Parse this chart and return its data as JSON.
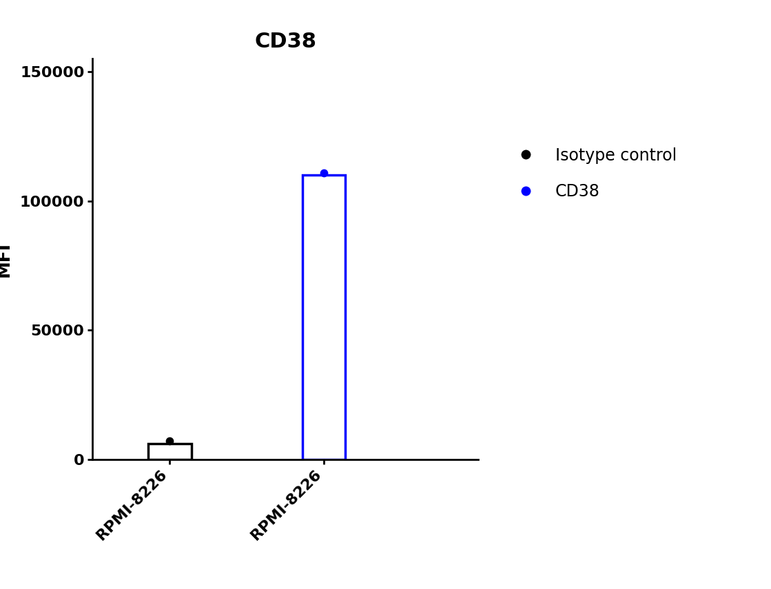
{
  "title": "CD38",
  "ylabel": "MFI",
  "categories": [
    "RPMI-8226",
    "RPMI-8226"
  ],
  "bar_values": [
    6000,
    110000
  ],
  "dot_values": [
    7200,
    111000
  ],
  "bar_colors": [
    "black",
    "blue"
  ],
  "dot_colors": [
    "black",
    "blue"
  ],
  "ylim": [
    0,
    155000
  ],
  "yticks": [
    0,
    50000,
    100000,
    150000
  ],
  "ytick_labels": [
    "0",
    "50000",
    "100000",
    "150000"
  ],
  "legend_labels": [
    "Isotype control",
    "CD38"
  ],
  "legend_colors": [
    "black",
    "blue"
  ],
  "title_fontsize": 22,
  "axis_label_fontsize": 18,
  "tick_fontsize": 16,
  "legend_fontsize": 17,
  "bar_width": 0.28,
  "bar_positions": [
    1,
    2
  ],
  "xlim": [
    0.5,
    3.0
  ],
  "background_color": "#ffffff"
}
